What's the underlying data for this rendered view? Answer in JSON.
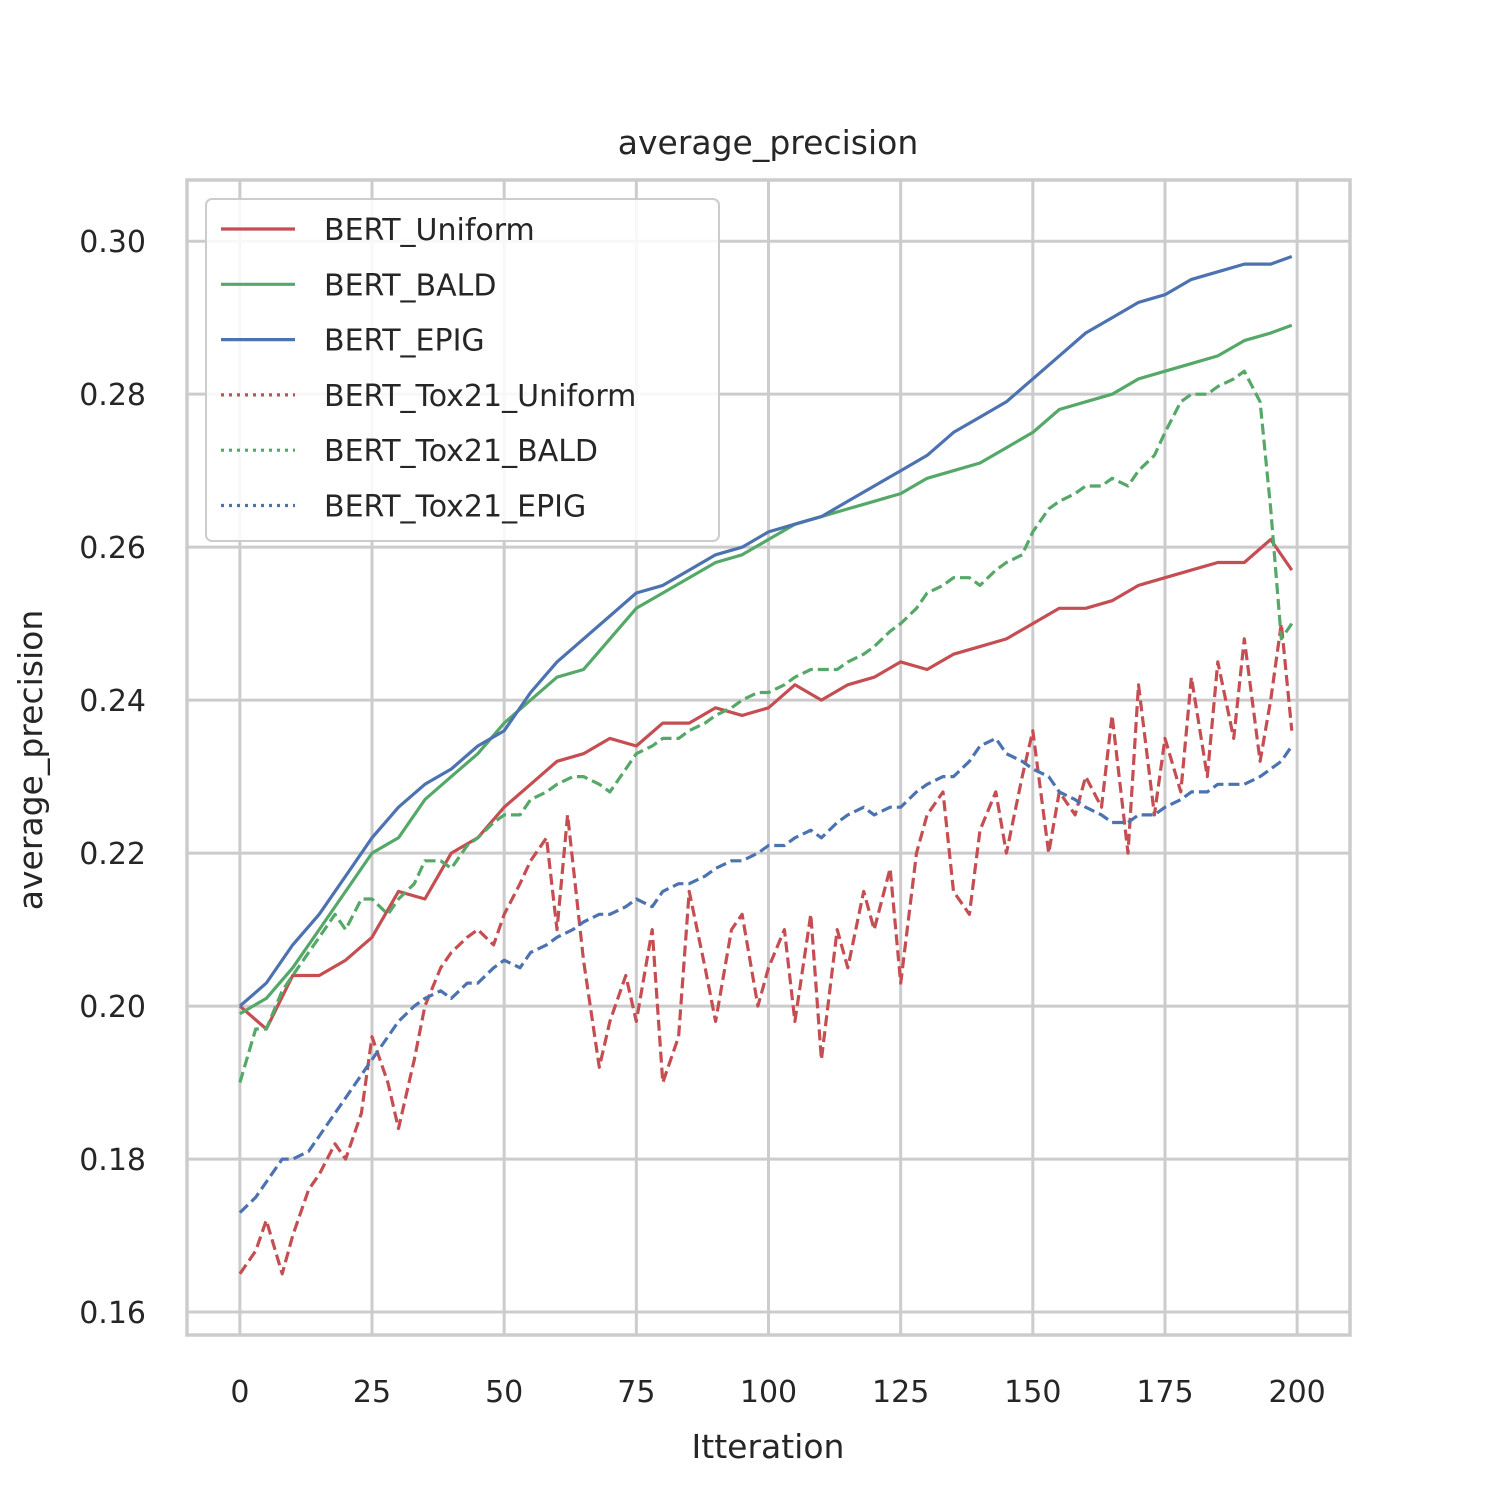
{
  "chart_data": {
    "type": "line",
    "title": "average_precision",
    "xlabel": "Itteration",
    "ylabel": "average_precision",
    "xlim": [
      -10,
      210
    ],
    "ylim": [
      0.157,
      0.308
    ],
    "xticks": [
      0,
      25,
      50,
      75,
      100,
      125,
      150,
      175,
      200
    ],
    "xtick_labels": [
      "0",
      "25",
      "50",
      "75",
      "100",
      "125",
      "150",
      "175",
      "200"
    ],
    "yticks": [
      0.16,
      0.18,
      0.2,
      0.22,
      0.24,
      0.26,
      0.28,
      0.3
    ],
    "ytick_labels": [
      "0.16",
      "0.18",
      "0.20",
      "0.22",
      "0.24",
      "0.26",
      "0.28",
      "0.30"
    ],
    "grid": true,
    "legend_position": "top-left",
    "series": [
      {
        "name": "BERT_Uniform",
        "color": "#c44e52",
        "style": "solid",
        "x": [
          0,
          5,
          10,
          15,
          20,
          25,
          30,
          35,
          40,
          45,
          50,
          55,
          60,
          65,
          70,
          75,
          80,
          85,
          90,
          95,
          100,
          105,
          110,
          115,
          120,
          125,
          130,
          135,
          140,
          145,
          150,
          155,
          160,
          165,
          170,
          175,
          180,
          185,
          190,
          195,
          199
        ],
        "y": [
          0.2,
          0.197,
          0.204,
          0.204,
          0.206,
          0.209,
          0.215,
          0.214,
          0.22,
          0.222,
          0.226,
          0.229,
          0.232,
          0.233,
          0.235,
          0.234,
          0.237,
          0.237,
          0.239,
          0.238,
          0.239,
          0.242,
          0.24,
          0.242,
          0.243,
          0.245,
          0.244,
          0.246,
          0.247,
          0.248,
          0.25,
          0.252,
          0.252,
          0.253,
          0.255,
          0.256,
          0.257,
          0.258,
          0.258,
          0.261,
          0.257
        ]
      },
      {
        "name": "BERT_BALD",
        "color": "#55a868",
        "style": "solid",
        "x": [
          0,
          5,
          10,
          15,
          20,
          25,
          30,
          35,
          40,
          45,
          50,
          55,
          60,
          65,
          70,
          75,
          80,
          85,
          90,
          95,
          100,
          105,
          110,
          115,
          120,
          125,
          130,
          135,
          140,
          145,
          150,
          155,
          160,
          165,
          170,
          175,
          180,
          185,
          190,
          195,
          199
        ],
        "y": [
          0.199,
          0.201,
          0.205,
          0.21,
          0.215,
          0.22,
          0.222,
          0.227,
          0.23,
          0.233,
          0.237,
          0.24,
          0.243,
          0.244,
          0.248,
          0.252,
          0.254,
          0.256,
          0.258,
          0.259,
          0.261,
          0.263,
          0.264,
          0.265,
          0.266,
          0.267,
          0.269,
          0.27,
          0.271,
          0.273,
          0.275,
          0.278,
          0.279,
          0.28,
          0.282,
          0.283,
          0.284,
          0.285,
          0.287,
          0.288,
          0.289
        ]
      },
      {
        "name": "BERT_EPIG",
        "color": "#4c72b0",
        "style": "solid",
        "x": [
          0,
          5,
          10,
          15,
          20,
          25,
          30,
          35,
          40,
          45,
          50,
          55,
          60,
          65,
          70,
          75,
          80,
          85,
          90,
          95,
          100,
          105,
          110,
          115,
          120,
          125,
          130,
          135,
          140,
          145,
          150,
          155,
          160,
          165,
          170,
          175,
          180,
          185,
          190,
          195,
          199
        ],
        "y": [
          0.2,
          0.203,
          0.208,
          0.212,
          0.217,
          0.222,
          0.226,
          0.229,
          0.231,
          0.234,
          0.236,
          0.241,
          0.245,
          0.248,
          0.251,
          0.254,
          0.255,
          0.257,
          0.259,
          0.26,
          0.262,
          0.263,
          0.264,
          0.266,
          0.268,
          0.27,
          0.272,
          0.275,
          0.277,
          0.279,
          0.282,
          0.285,
          0.288,
          0.29,
          0.292,
          0.293,
          0.295,
          0.296,
          0.297,
          0.297,
          0.298
        ]
      },
      {
        "name": "BERT_Tox21_Uniform",
        "color": "#c44e52",
        "style": "dotted",
        "x": [
          0,
          3,
          5,
          8,
          10,
          13,
          15,
          18,
          20,
          23,
          25,
          28,
          30,
          33,
          35,
          38,
          40,
          43,
          45,
          48,
          50,
          53,
          55,
          58,
          60,
          62,
          65,
          68,
          70,
          73,
          75,
          78,
          80,
          83,
          85,
          88,
          90,
          93,
          95,
          98,
          100,
          103,
          105,
          108,
          110,
          113,
          115,
          118,
          120,
          123,
          125,
          128,
          130,
          133,
          135,
          138,
          140,
          143,
          145,
          148,
          150,
          153,
          155,
          158,
          160,
          163,
          165,
          168,
          170,
          173,
          175,
          178,
          180,
          183,
          185,
          188,
          190,
          193,
          195,
          197,
          199
        ],
        "y": [
          0.165,
          0.168,
          0.172,
          0.165,
          0.17,
          0.176,
          0.178,
          0.182,
          0.18,
          0.186,
          0.196,
          0.19,
          0.184,
          0.193,
          0.2,
          0.205,
          0.207,
          0.209,
          0.21,
          0.208,
          0.212,
          0.216,
          0.219,
          0.222,
          0.21,
          0.225,
          0.206,
          0.192,
          0.198,
          0.204,
          0.198,
          0.21,
          0.19,
          0.196,
          0.215,
          0.205,
          0.198,
          0.21,
          0.212,
          0.2,
          0.205,
          0.21,
          0.198,
          0.212,
          0.193,
          0.21,
          0.205,
          0.215,
          0.21,
          0.218,
          0.203,
          0.22,
          0.225,
          0.228,
          0.215,
          0.212,
          0.223,
          0.228,
          0.22,
          0.23,
          0.236,
          0.22,
          0.228,
          0.225,
          0.23,
          0.226,
          0.238,
          0.22,
          0.242,
          0.225,
          0.235,
          0.228,
          0.243,
          0.23,
          0.245,
          0.235,
          0.248,
          0.232,
          0.24,
          0.25,
          0.236
        ]
      },
      {
        "name": "BERT_Tox21_BALD",
        "color": "#55a868",
        "style": "dotted",
        "x": [
          0,
          3,
          5,
          8,
          10,
          13,
          15,
          18,
          20,
          23,
          25,
          28,
          30,
          33,
          35,
          38,
          40,
          43,
          45,
          48,
          50,
          53,
          55,
          58,
          60,
          63,
          65,
          68,
          70,
          73,
          75,
          78,
          80,
          83,
          85,
          88,
          90,
          93,
          95,
          98,
          100,
          103,
          105,
          108,
          110,
          113,
          115,
          118,
          120,
          123,
          125,
          128,
          130,
          133,
          135,
          138,
          140,
          143,
          145,
          148,
          150,
          153,
          155,
          158,
          160,
          163,
          165,
          168,
          170,
          173,
          175,
          178,
          180,
          183,
          185,
          188,
          190,
          193,
          195,
          197,
          199
        ],
        "y": [
          0.19,
          0.197,
          0.197,
          0.202,
          0.204,
          0.207,
          0.209,
          0.212,
          0.21,
          0.214,
          0.214,
          0.212,
          0.214,
          0.216,
          0.219,
          0.219,
          0.218,
          0.221,
          0.222,
          0.224,
          0.225,
          0.225,
          0.227,
          0.228,
          0.229,
          0.23,
          0.23,
          0.229,
          0.228,
          0.231,
          0.233,
          0.234,
          0.235,
          0.235,
          0.236,
          0.237,
          0.238,
          0.239,
          0.24,
          0.241,
          0.241,
          0.242,
          0.243,
          0.244,
          0.244,
          0.244,
          0.245,
          0.246,
          0.247,
          0.249,
          0.25,
          0.252,
          0.254,
          0.255,
          0.256,
          0.256,
          0.255,
          0.257,
          0.258,
          0.259,
          0.262,
          0.265,
          0.266,
          0.267,
          0.268,
          0.268,
          0.269,
          0.268,
          0.27,
          0.272,
          0.275,
          0.279,
          0.28,
          0.28,
          0.281,
          0.282,
          0.283,
          0.279,
          0.265,
          0.248,
          0.25
        ]
      },
      {
        "name": "BERT_Tox21_EPIG",
        "color": "#4c72b0",
        "style": "dotted",
        "x": [
          0,
          3,
          5,
          8,
          10,
          13,
          15,
          18,
          20,
          23,
          25,
          28,
          30,
          33,
          35,
          38,
          40,
          43,
          45,
          48,
          50,
          53,
          55,
          58,
          60,
          63,
          65,
          68,
          70,
          73,
          75,
          78,
          80,
          83,
          85,
          88,
          90,
          93,
          95,
          98,
          100,
          103,
          105,
          108,
          110,
          113,
          115,
          118,
          120,
          123,
          125,
          128,
          130,
          133,
          135,
          138,
          140,
          143,
          145,
          148,
          150,
          153,
          155,
          158,
          160,
          163,
          165,
          168,
          170,
          173,
          175,
          178,
          180,
          183,
          185,
          188,
          190,
          193,
          195,
          197,
          199
        ],
        "y": [
          0.173,
          0.175,
          0.177,
          0.18,
          0.18,
          0.181,
          0.183,
          0.186,
          0.188,
          0.191,
          0.193,
          0.196,
          0.198,
          0.2,
          0.201,
          0.202,
          0.201,
          0.203,
          0.203,
          0.205,
          0.206,
          0.205,
          0.207,
          0.208,
          0.209,
          0.21,
          0.211,
          0.212,
          0.212,
          0.213,
          0.214,
          0.213,
          0.215,
          0.216,
          0.216,
          0.217,
          0.218,
          0.219,
          0.219,
          0.22,
          0.221,
          0.221,
          0.222,
          0.223,
          0.222,
          0.224,
          0.225,
          0.226,
          0.225,
          0.226,
          0.226,
          0.228,
          0.229,
          0.23,
          0.23,
          0.232,
          0.234,
          0.235,
          0.233,
          0.232,
          0.231,
          0.23,
          0.228,
          0.227,
          0.226,
          0.225,
          0.224,
          0.224,
          0.225,
          0.225,
          0.226,
          0.227,
          0.228,
          0.228,
          0.229,
          0.229,
          0.229,
          0.23,
          0.231,
          0.232,
          0.234
        ]
      }
    ]
  }
}
